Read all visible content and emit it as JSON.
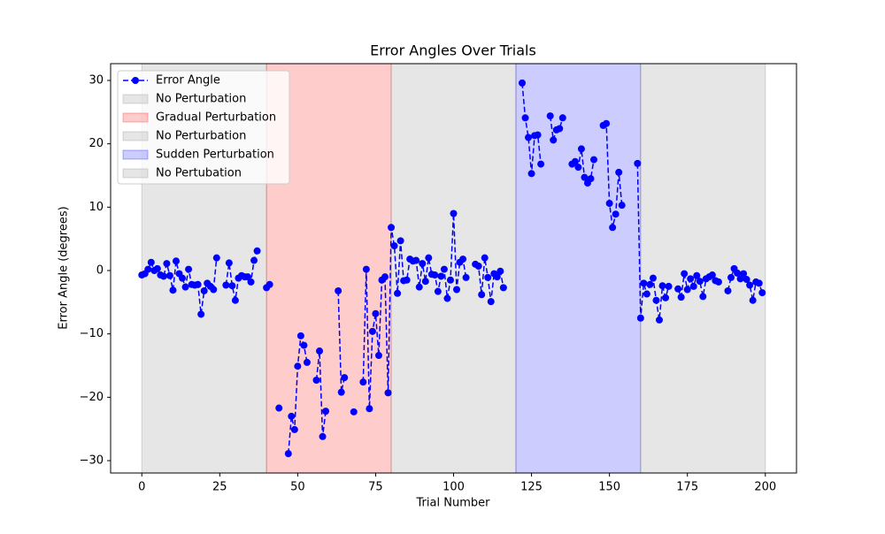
{
  "chart_data": {
    "type": "line",
    "title": "Error Angles Over Trials",
    "x_label": "Trial Number",
    "y_label": "Error Angle (degrees)",
    "xlim": [
      -10,
      210
    ],
    "ylim": [
      -31.95,
      32.65
    ],
    "xticks": [
      0,
      25,
      50,
      75,
      100,
      125,
      150,
      175,
      200
    ],
    "yticks": [
      {
        "value": -30,
        "label": "−30"
      },
      {
        "value": -20,
        "label": "−20"
      },
      {
        "value": -10,
        "label": "−10"
      },
      0,
      10,
      20,
      30
    ],
    "legend": "upper left",
    "spans": [
      {
        "name": "No Perturbation",
        "start": 0,
        "end": 40,
        "color": "#808080",
        "opacity": 0.2
      },
      {
        "name": "Gradual Perturbation",
        "start": 40,
        "end": 80,
        "color": "#ff0000",
        "opacity": 0.2
      },
      {
        "name": "No Perturbation",
        "start": 80,
        "end": 120,
        "color": "#808080",
        "opacity": 0.2
      },
      {
        "name": "Sudden Perturbation",
        "start": 120,
        "end": 160,
        "color": "#0000ff",
        "opacity": 0.2
      },
      {
        "name": "No Pertubation",
        "start": 160,
        "end": 200,
        "color": "#808080",
        "opacity": 0.2
      }
    ],
    "x": [
      0,
      1,
      2,
      3,
      4,
      5,
      6,
      7,
      8,
      9,
      10,
      11,
      12,
      13,
      14,
      15,
      16,
      17,
      18,
      19,
      20,
      21,
      22,
      23,
      24,
      25,
      26,
      27,
      28,
      29,
      30,
      31,
      32,
      33,
      34,
      35,
      36,
      37,
      38,
      39,
      40,
      41,
      42,
      43,
      44,
      45,
      46,
      47,
      48,
      49,
      50,
      51,
      52,
      53,
      54,
      55,
      56,
      57,
      58,
      59,
      60,
      61,
      62,
      63,
      64,
      65,
      66,
      67,
      68,
      69,
      70,
      71,
      72,
      73,
      74,
      75,
      76,
      77,
      78,
      79,
      80,
      81,
      82,
      83,
      84,
      85,
      86,
      87,
      88,
      89,
      90,
      91,
      92,
      93,
      94,
      95,
      96,
      97,
      98,
      99,
      100,
      101,
      102,
      103,
      104,
      105,
      106,
      107,
      108,
      109,
      110,
      111,
      112,
      113,
      114,
      115,
      116,
      117,
      118,
      119,
      120,
      121,
      122,
      123,
      124,
      125,
      126,
      127,
      128,
      129,
      130,
      131,
      132,
      133,
      134,
      135,
      136,
      137,
      138,
      139,
      140,
      141,
      142,
      143,
      144,
      145,
      146,
      147,
      148,
      149,
      150,
      151,
      152,
      153,
      154,
      155,
      156,
      157,
      158,
      159,
      160,
      161,
      162,
      163,
      164,
      165,
      166,
      167,
      168,
      169,
      170,
      171,
      172,
      173,
      174,
      175,
      176,
      177,
      178,
      179,
      180,
      181,
      182,
      183,
      184,
      185,
      186,
      187,
      188,
      189,
      190,
      191,
      192,
      193,
      194,
      195,
      196,
      197,
      198,
      199
    ],
    "series": [
      {
        "name": "Error Angle",
        "color": "#0000ff",
        "values": [
          -0.7,
          -0.5,
          0.2,
          1.3,
          0,
          0.3,
          -0.7,
          -0.9,
          1.1,
          -0.8,
          -3.1,
          1.5,
          -0.5,
          -1.2,
          -2.6,
          0.2,
          -2.2,
          -2.3,
          -2.2,
          -6.9,
          -3.2,
          -2.0,
          -2.5,
          -3.0,
          2.0,
          null,
          null,
          -2.3,
          1.2,
          -2.4,
          -4.7,
          -1.2,
          -0.8,
          -1.0,
          -1.0,
          -1.8,
          1.6,
          3.1,
          null,
          null,
          -2.7,
          -2.2,
          null,
          null,
          -21.7,
          null,
          null,
          -28.9,
          -23.0,
          -25.1,
          -15.1,
          -10.3,
          -11.8,
          -14.5,
          null,
          null,
          -17.3,
          -12.7,
          -26.2,
          -22.2,
          null,
          null,
          null,
          -3.2,
          -19.2,
          -16.9,
          null,
          null,
          -22.3,
          null,
          null,
          -17.6,
          0.2,
          -21.8,
          -9.6,
          -6.8,
          -13.4,
          -1.5,
          -1.0,
          -19.3,
          6.8,
          3.9,
          -3.6,
          4.7,
          -1.6,
          -1.5,
          1.8,
          1.5,
          1.6,
          -2.6,
          1.1,
          -1.7,
          2.0,
          -0.6,
          -0.7,
          -3.3,
          -0.9,
          0.2,
          -4.4,
          -1.5,
          9.0,
          -3.0,
          1.3,
          1.8,
          -1.1,
          null,
          null,
          1.0,
          0.7,
          -3.8,
          2.0,
          -1.1,
          -4.9,
          -0.5,
          -1.0,
          -0.1,
          -2.7,
          null,
          null,
          null,
          null,
          null,
          29.6,
          24.1,
          21.0,
          15.3,
          21.3,
          21.4,
          16.8,
          null,
          null,
          24.4,
          20.6,
          22.2,
          22.4,
          24.1,
          null,
          null,
          16.8,
          17.2,
          16.3,
          19.2,
          14.7,
          13.8,
          14.5,
          17.5,
          null,
          null,
          22.9,
          23.2,
          10.6,
          6.8,
          8.9,
          15.5,
          10.3,
          null,
          null,
          null,
          null,
          16.9,
          -7.5,
          -2.0,
          -3.7,
          -2.2,
          -1.2,
          -4.7,
          -7.8,
          -2.4,
          -4.3,
          -2.5,
          null,
          null,
          -2.9,
          -4.2,
          -0.5,
          -3.0,
          -1.3,
          -2.5,
          -0.8,
          -1.7,
          -4.1,
          -1.3,
          -1.0,
          -0.7,
          -1.6,
          -1.8,
          null,
          null,
          -3.2,
          -1.1,
          0.3,
          -0.4,
          -1.3,
          -0.5,
          -1.4,
          -2.3,
          -4.7,
          -1.8,
          -2.0,
          -3.5
        ]
      }
    ]
  }
}
